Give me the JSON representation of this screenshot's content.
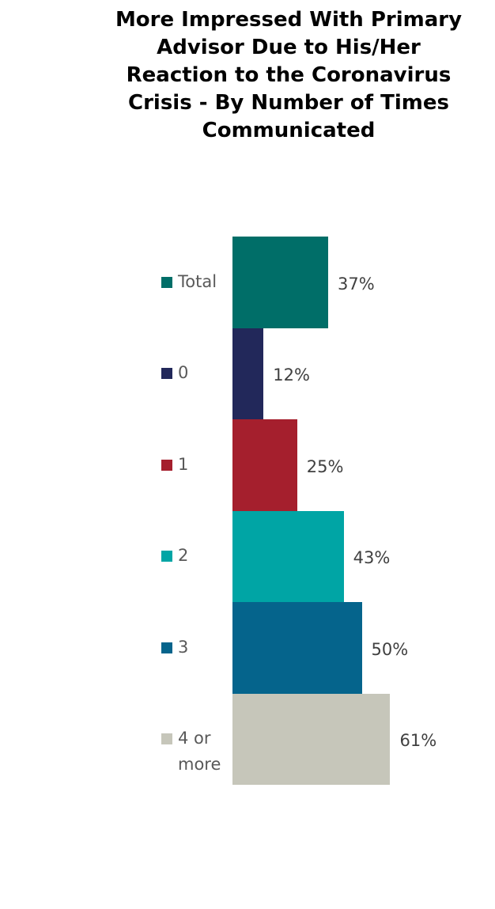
{
  "chart_data": {
    "type": "bar",
    "title": "More Impressed With Primary Advisor Due to His/Her Reaction to the Coronavirus Crisis - By Number of Times Communicated",
    "categories": [
      "Total",
      "0",
      "1",
      "2",
      "3",
      "4 or more"
    ],
    "values": [
      37,
      12,
      25,
      43,
      50,
      61
    ],
    "value_labels": [
      "37%",
      "12%",
      "25%",
      "43%",
      "50%",
      "61%"
    ],
    "colors": [
      "#006e68",
      "#22285a",
      "#a51f2d",
      "#00a5a5",
      "#05648c",
      "#c6c6ba"
    ]
  }
}
